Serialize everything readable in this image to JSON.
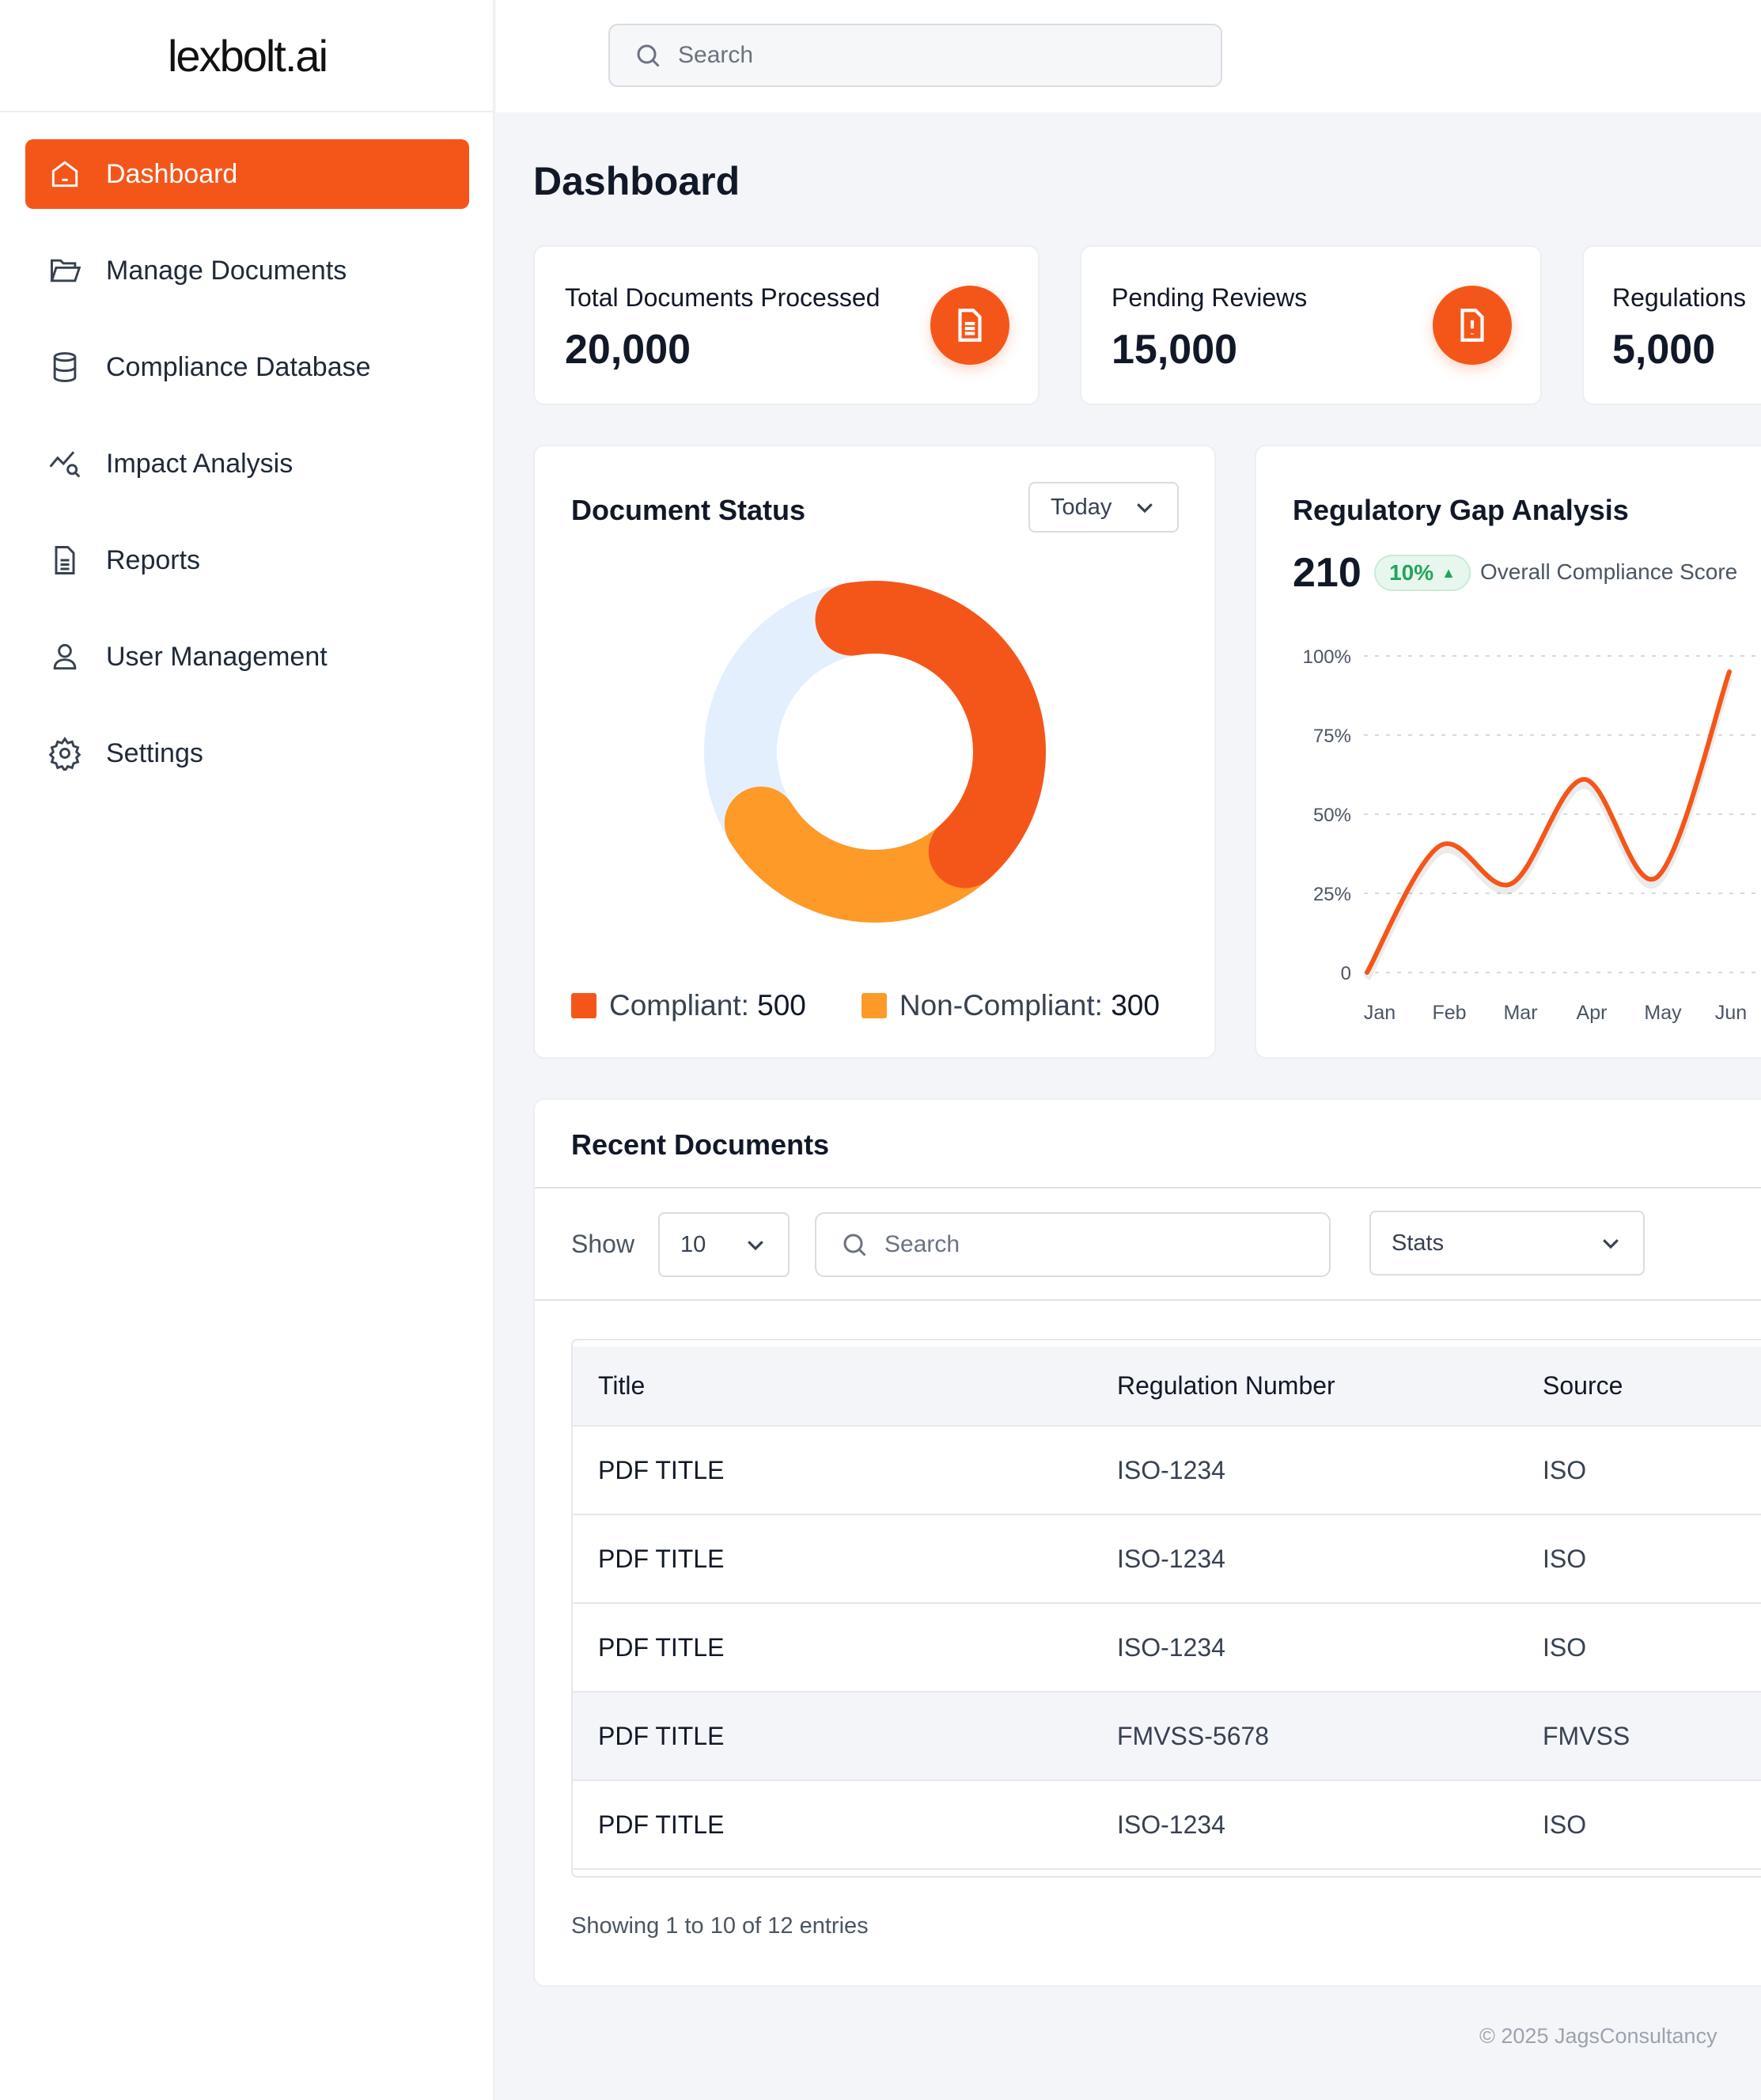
{
  "brand": "lexbolt.ai",
  "search": {
    "placeholder": "Search"
  },
  "sidebar": {
    "items": [
      {
        "label": "Dashboard",
        "icon": "home-icon",
        "active": true
      },
      {
        "label": "Manage Documents",
        "icon": "folder-icon"
      },
      {
        "label": "Compliance Database",
        "icon": "database-icon"
      },
      {
        "label": "Impact Analysis",
        "icon": "chart-search-icon"
      },
      {
        "label": "Reports",
        "icon": "file-text-icon"
      },
      {
        "label": "User Management",
        "icon": "user-icon"
      },
      {
        "label": "Settings",
        "icon": "gear-icon"
      }
    ]
  },
  "page_title": "Dashboard",
  "stats": [
    {
      "label": "Total Documents Processed",
      "value": "20,000",
      "icon": "document-icon"
    },
    {
      "label": "Pending Reviews",
      "value": "15,000",
      "icon": "file-alert-icon"
    },
    {
      "label": "Regulations",
      "value": "5,000"
    }
  ],
  "doc_status": {
    "title": "Document Status",
    "period": "Today",
    "legend": [
      {
        "label": "Compliant:",
        "value": "500",
        "color": "#f4561a"
      },
      {
        "label": "Non-Compliant:",
        "value": "300",
        "color": "#fd9a28"
      }
    ]
  },
  "gap": {
    "title": "Regulatory Gap Analysis",
    "score": "210",
    "change": "10%",
    "score_label": "Overall Compliance Score"
  },
  "chart_data": {
    "type": "line",
    "title": "Regulatory Gap Analysis",
    "categories": [
      "Jan",
      "Feb",
      "Mar",
      "Apr",
      "May",
      "Jun"
    ],
    "values": [
      0,
      40,
      28,
      61,
      30,
      95
    ],
    "yticks": [
      "0",
      "25%",
      "50%",
      "75%",
      "100%"
    ],
    "ylim": [
      0,
      100
    ],
    "grid": true,
    "color": "#f4561a"
  },
  "recent": {
    "title": "Recent Documents",
    "show_label": "Show",
    "page_size": "10",
    "search_placeholder": "Search",
    "filter": "Stats",
    "columns": [
      "Title",
      "Regulation Number",
      "Source"
    ],
    "rows": [
      [
        "PDF TITLE",
        "ISO-1234",
        "ISO"
      ],
      [
        "PDF TITLE",
        "ISO-1234",
        "ISO"
      ],
      [
        "PDF TITLE",
        "ISO-1234",
        "ISO"
      ],
      [
        "PDF TITLE",
        "FMVSS-5678",
        "FMVSS"
      ],
      [
        "PDF TITLE",
        "ISO-1234",
        "ISO"
      ]
    ],
    "footer": "Showing 1 to 10 of 12 entries"
  },
  "copyright": "© 2025 JagsConsultancy"
}
